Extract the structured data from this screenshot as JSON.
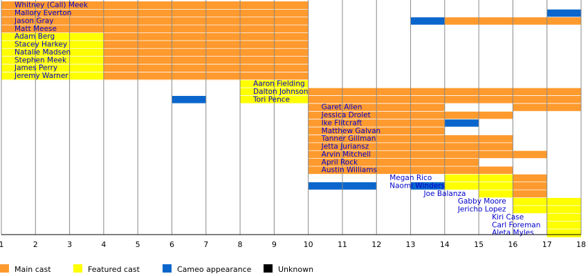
{
  "chart_data": {
    "type": "timeline",
    "x_ticks": [
      1,
      2,
      3,
      4,
      5,
      6,
      7,
      8,
      9,
      10,
      11,
      12,
      13,
      14,
      15,
      16,
      17,
      18
    ],
    "xlim": [
      1,
      18
    ],
    "grid": "vertical",
    "colors": {
      "main": "#ff9a2e",
      "featured": "#ffff00",
      "cameo": "#0a66cc",
      "unknown": "#000000",
      "grid": "#888888",
      "name": "#0000cc"
    },
    "legend": {
      "placement": "bottom",
      "items": [
        {
          "key": "main",
          "label": "Main cast"
        },
        {
          "key": "featured",
          "label": "Featured cast"
        },
        {
          "key": "cameo",
          "label": "Cameo appearance"
        },
        {
          "key": "unknown",
          "label": "Unknown"
        }
      ]
    },
    "rows": [
      {
        "name": "Whitney (Call) Meek",
        "label_start": 1,
        "segments": [
          [
            "main",
            1,
            10
          ]
        ]
      },
      {
        "name": "Mallory Everton",
        "label_start": 1,
        "segments": [
          [
            "main",
            1,
            10
          ],
          [
            "cameo",
            17,
            18
          ]
        ]
      },
      {
        "name": "Jason Gray",
        "label_start": 1,
        "segments": [
          [
            "main",
            1,
            10
          ],
          [
            "cameo",
            13,
            14
          ],
          [
            "main",
            14,
            18
          ]
        ]
      },
      {
        "name": "Matt Meese",
        "label_start": 1,
        "segments": [
          [
            "main",
            1,
            10
          ]
        ]
      },
      {
        "name": "Adam Berg",
        "label_start": 1,
        "segments": [
          [
            "featured",
            1,
            4
          ],
          [
            "main",
            4,
            10
          ]
        ]
      },
      {
        "name": "Stacey Harkey",
        "label_start": 1,
        "segments": [
          [
            "featured",
            1,
            4
          ],
          [
            "main",
            4,
            10
          ]
        ]
      },
      {
        "name": "Natalie Madsen",
        "label_start": 1,
        "segments": [
          [
            "featured",
            1,
            4
          ],
          [
            "main",
            4,
            10
          ]
        ]
      },
      {
        "name": "Stephen Meek",
        "label_start": 1,
        "segments": [
          [
            "featured",
            1,
            4
          ],
          [
            "main",
            4,
            10
          ]
        ]
      },
      {
        "name": "James Perry",
        "label_start": 1,
        "segments": [
          [
            "featured",
            1,
            4
          ],
          [
            "main",
            4,
            10
          ]
        ]
      },
      {
        "name": "Jeremy Warner",
        "label_start": 1,
        "segments": [
          [
            "featured",
            1,
            4
          ],
          [
            "main",
            4,
            10
          ]
        ]
      },
      {
        "name": "Aaron Fielding",
        "label_start": 8,
        "segments": [
          [
            "featured",
            8,
            10
          ]
        ]
      },
      {
        "name": "Dalton Johnson",
        "label_start": 8,
        "segments": [
          [
            "featured",
            8,
            10
          ],
          [
            "main",
            10,
            18
          ]
        ]
      },
      {
        "name": "Tori Pence",
        "label_start": 8,
        "segments": [
          [
            "cameo",
            6,
            7
          ],
          [
            "featured",
            8,
            10
          ],
          [
            "main",
            10,
            18
          ]
        ]
      },
      {
        "name": "Garet Allen",
        "label_start": 10,
        "segments": [
          [
            "main",
            10,
            14
          ],
          [
            "main",
            16,
            18
          ]
        ]
      },
      {
        "name": "Jessica Drolet",
        "label_start": 10,
        "segments": [
          [
            "main",
            10,
            16
          ]
        ]
      },
      {
        "name": "Ike Flitcraft",
        "label_start": 10,
        "segments": [
          [
            "main",
            10,
            14
          ],
          [
            "cameo",
            14,
            15
          ]
        ]
      },
      {
        "name": "Matthew Galvan",
        "label_start": 10,
        "segments": [
          [
            "main",
            10,
            14
          ]
        ]
      },
      {
        "name": "Tanner Gillman",
        "label_start": 10,
        "segments": [
          [
            "main",
            10,
            16
          ]
        ]
      },
      {
        "name": "Jetta Juriansz",
        "label_start": 10,
        "segments": [
          [
            "main",
            10,
            16
          ]
        ]
      },
      {
        "name": "Arvin Mitchell",
        "label_start": 10,
        "segments": [
          [
            "main",
            10,
            17
          ]
        ]
      },
      {
        "name": "April Rock",
        "label_start": 10,
        "segments": [
          [
            "main",
            10,
            15
          ]
        ]
      },
      {
        "name": "Austin Williams",
        "label_start": 10,
        "segments": [
          [
            "main",
            10,
            16
          ]
        ]
      },
      {
        "name": "Megan Rico",
        "label_start": 12,
        "segments": [
          [
            "featured",
            14,
            16
          ],
          [
            "main",
            16,
            17
          ]
        ]
      },
      {
        "name": "Naomi Winders",
        "label_start": 12,
        "segments": [
          [
            "cameo",
            10,
            12
          ],
          [
            "cameo",
            13,
            14
          ],
          [
            "featured",
            14,
            16
          ],
          [
            "main",
            16,
            17
          ]
        ]
      },
      {
        "name": "Joe Balanza",
        "label_start": 13,
        "segments": [
          [
            "featured",
            15,
            16
          ],
          [
            "main",
            16,
            17
          ]
        ]
      },
      {
        "name": "Gabby Moore",
        "label_start": 14,
        "segments": [
          [
            "featured",
            16,
            18
          ]
        ]
      },
      {
        "name": "Jericho Lopez",
        "label_start": 14,
        "segments": [
          [
            "featured",
            16,
            18
          ]
        ]
      },
      {
        "name": "Kiri Case",
        "label_start": 15,
        "segments": [
          [
            "featured",
            17,
            18
          ]
        ]
      },
      {
        "name": "Carl Foreman",
        "label_start": 15,
        "segments": [
          [
            "featured",
            17,
            18
          ]
        ]
      },
      {
        "name": "Aleta Myles",
        "label_start": 15,
        "segments": [
          [
            "featured",
            17,
            18
          ]
        ]
      }
    ]
  }
}
